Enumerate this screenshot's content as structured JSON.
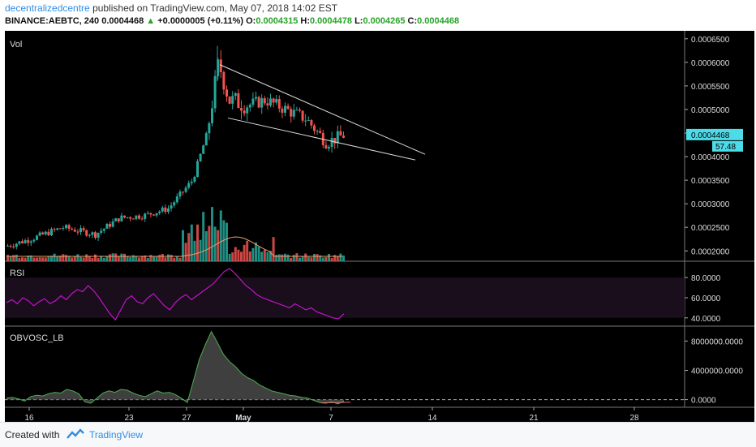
{
  "header": {
    "author": "decentralizedcentre",
    "published_text": "published on TradingView.com, May 07, 2018 14:02 EST",
    "symbol_line": "BINANCE:AEBTC, 240",
    "last": "0.0004468",
    "change": "+0.0000005 (+0.11%)",
    "o_label": "O:",
    "o_value": "0.0004315",
    "h_label": "H:",
    "h_value": "0.0004478",
    "l_label": "L:",
    "l_value": "0.0004265",
    "c_label": "C:",
    "c_value": "0.0004468"
  },
  "footer": {
    "created_with": "Created with",
    "brand": "TradingView"
  },
  "colors": {
    "up": "#26a69a",
    "down": "#ef5350",
    "rsi": "#c014c8",
    "obv": "#6f6f6f",
    "price_tag": "#4ddbe8"
  },
  "chart_data": [
    {
      "type": "candlestick",
      "pane": "price",
      "label": "Vol",
      "y_ticks": [
        "0.0006500",
        "0.0006000",
        "0.0005500",
        "0.0005000",
        "0.0004500",
        "0.0004000",
        "0.0003500",
        "0.0003000",
        "0.0002500",
        "0.0002000"
      ],
      "ylim": [
        0.000185,
        0.00066
      ],
      "x_ticks": [
        "16",
        "23",
        "27",
        "May",
        "7",
        "14",
        "21",
        "28"
      ],
      "last_price_tag": "0.0004468",
      "volume_tag": "57.48",
      "annotations": [
        "falling wedge trendlines from Apr 28 peak extending toward May 12"
      ],
      "approx_close_path": [
        {
          "x": "Apr 14",
          "y": 0.00021
        },
        {
          "x": "Apr 16",
          "y": 0.000225
        },
        {
          "x": "Apr 19",
          "y": 0.00025
        },
        {
          "x": "Apr 21",
          "y": 0.000235
        },
        {
          "x": "Apr 23",
          "y": 0.00027
        },
        {
          "x": "Apr 25",
          "y": 0.000275
        },
        {
          "x": "Apr 26",
          "y": 0.00029
        },
        {
          "x": "Apr 27",
          "y": 0.00035
        },
        {
          "x": "Apr 28",
          "y": 0.0006
        },
        {
          "x": "Apr 30",
          "y": 0.00051
        },
        {
          "x": "May 2",
          "y": 0.00052
        },
        {
          "x": "May 4",
          "y": 0.00048
        },
        {
          "x": "May 6",
          "y": 0.00043
        },
        {
          "x": "May 7",
          "y": 0.0004468
        }
      ]
    },
    {
      "type": "line",
      "pane": "rsi",
      "label": "RSI",
      "y_ticks": [
        "80.0000",
        "60.0000",
        "40.0000"
      ],
      "ylim": [
        35,
        93
      ],
      "values": [
        55,
        58,
        54,
        60,
        57,
        52,
        56,
        59,
        54,
        57,
        62,
        58,
        64,
        68,
        66,
        72,
        67,
        60,
        52,
        44,
        38,
        48,
        58,
        62,
        56,
        54,
        60,
        64,
        58,
        52,
        48,
        55,
        60,
        63,
        58,
        62,
        66,
        70,
        74,
        80,
        86,
        89,
        84,
        78,
        72,
        68,
        63,
        60,
        58,
        56,
        54,
        52,
        50,
        54,
        51,
        48,
        50,
        46,
        44,
        42,
        40,
        39,
        44
      ]
    },
    {
      "type": "area",
      "pane": "obv_oscillator",
      "label": "OBVOSC_LB",
      "y_ticks": [
        "8000000.0000",
        "4000000.0000",
        "0.0000"
      ],
      "ylim": [
        -600000,
        9600000
      ],
      "values": [
        200000,
        300000,
        100000,
        -200000,
        400000,
        600000,
        500000,
        800000,
        1000000,
        900000,
        1400000,
        1200000,
        800000,
        -300000,
        -500000,
        200000,
        900000,
        1200000,
        1000000,
        1400000,
        1300000,
        900000,
        600000,
        400000,
        800000,
        1200000,
        900000,
        1000000,
        700000,
        200000,
        -400000,
        2500000,
        5500000,
        7500000,
        9300000,
        7800000,
        6200000,
        5200000,
        4500000,
        3600000,
        3000000,
        2600000,
        2000000,
        1600000,
        1200000,
        1000000,
        800000,
        600000,
        500000,
        300000,
        200000,
        -100000,
        -400000,
        -500000,
        -300000,
        -600000,
        -200000
      ]
    }
  ]
}
